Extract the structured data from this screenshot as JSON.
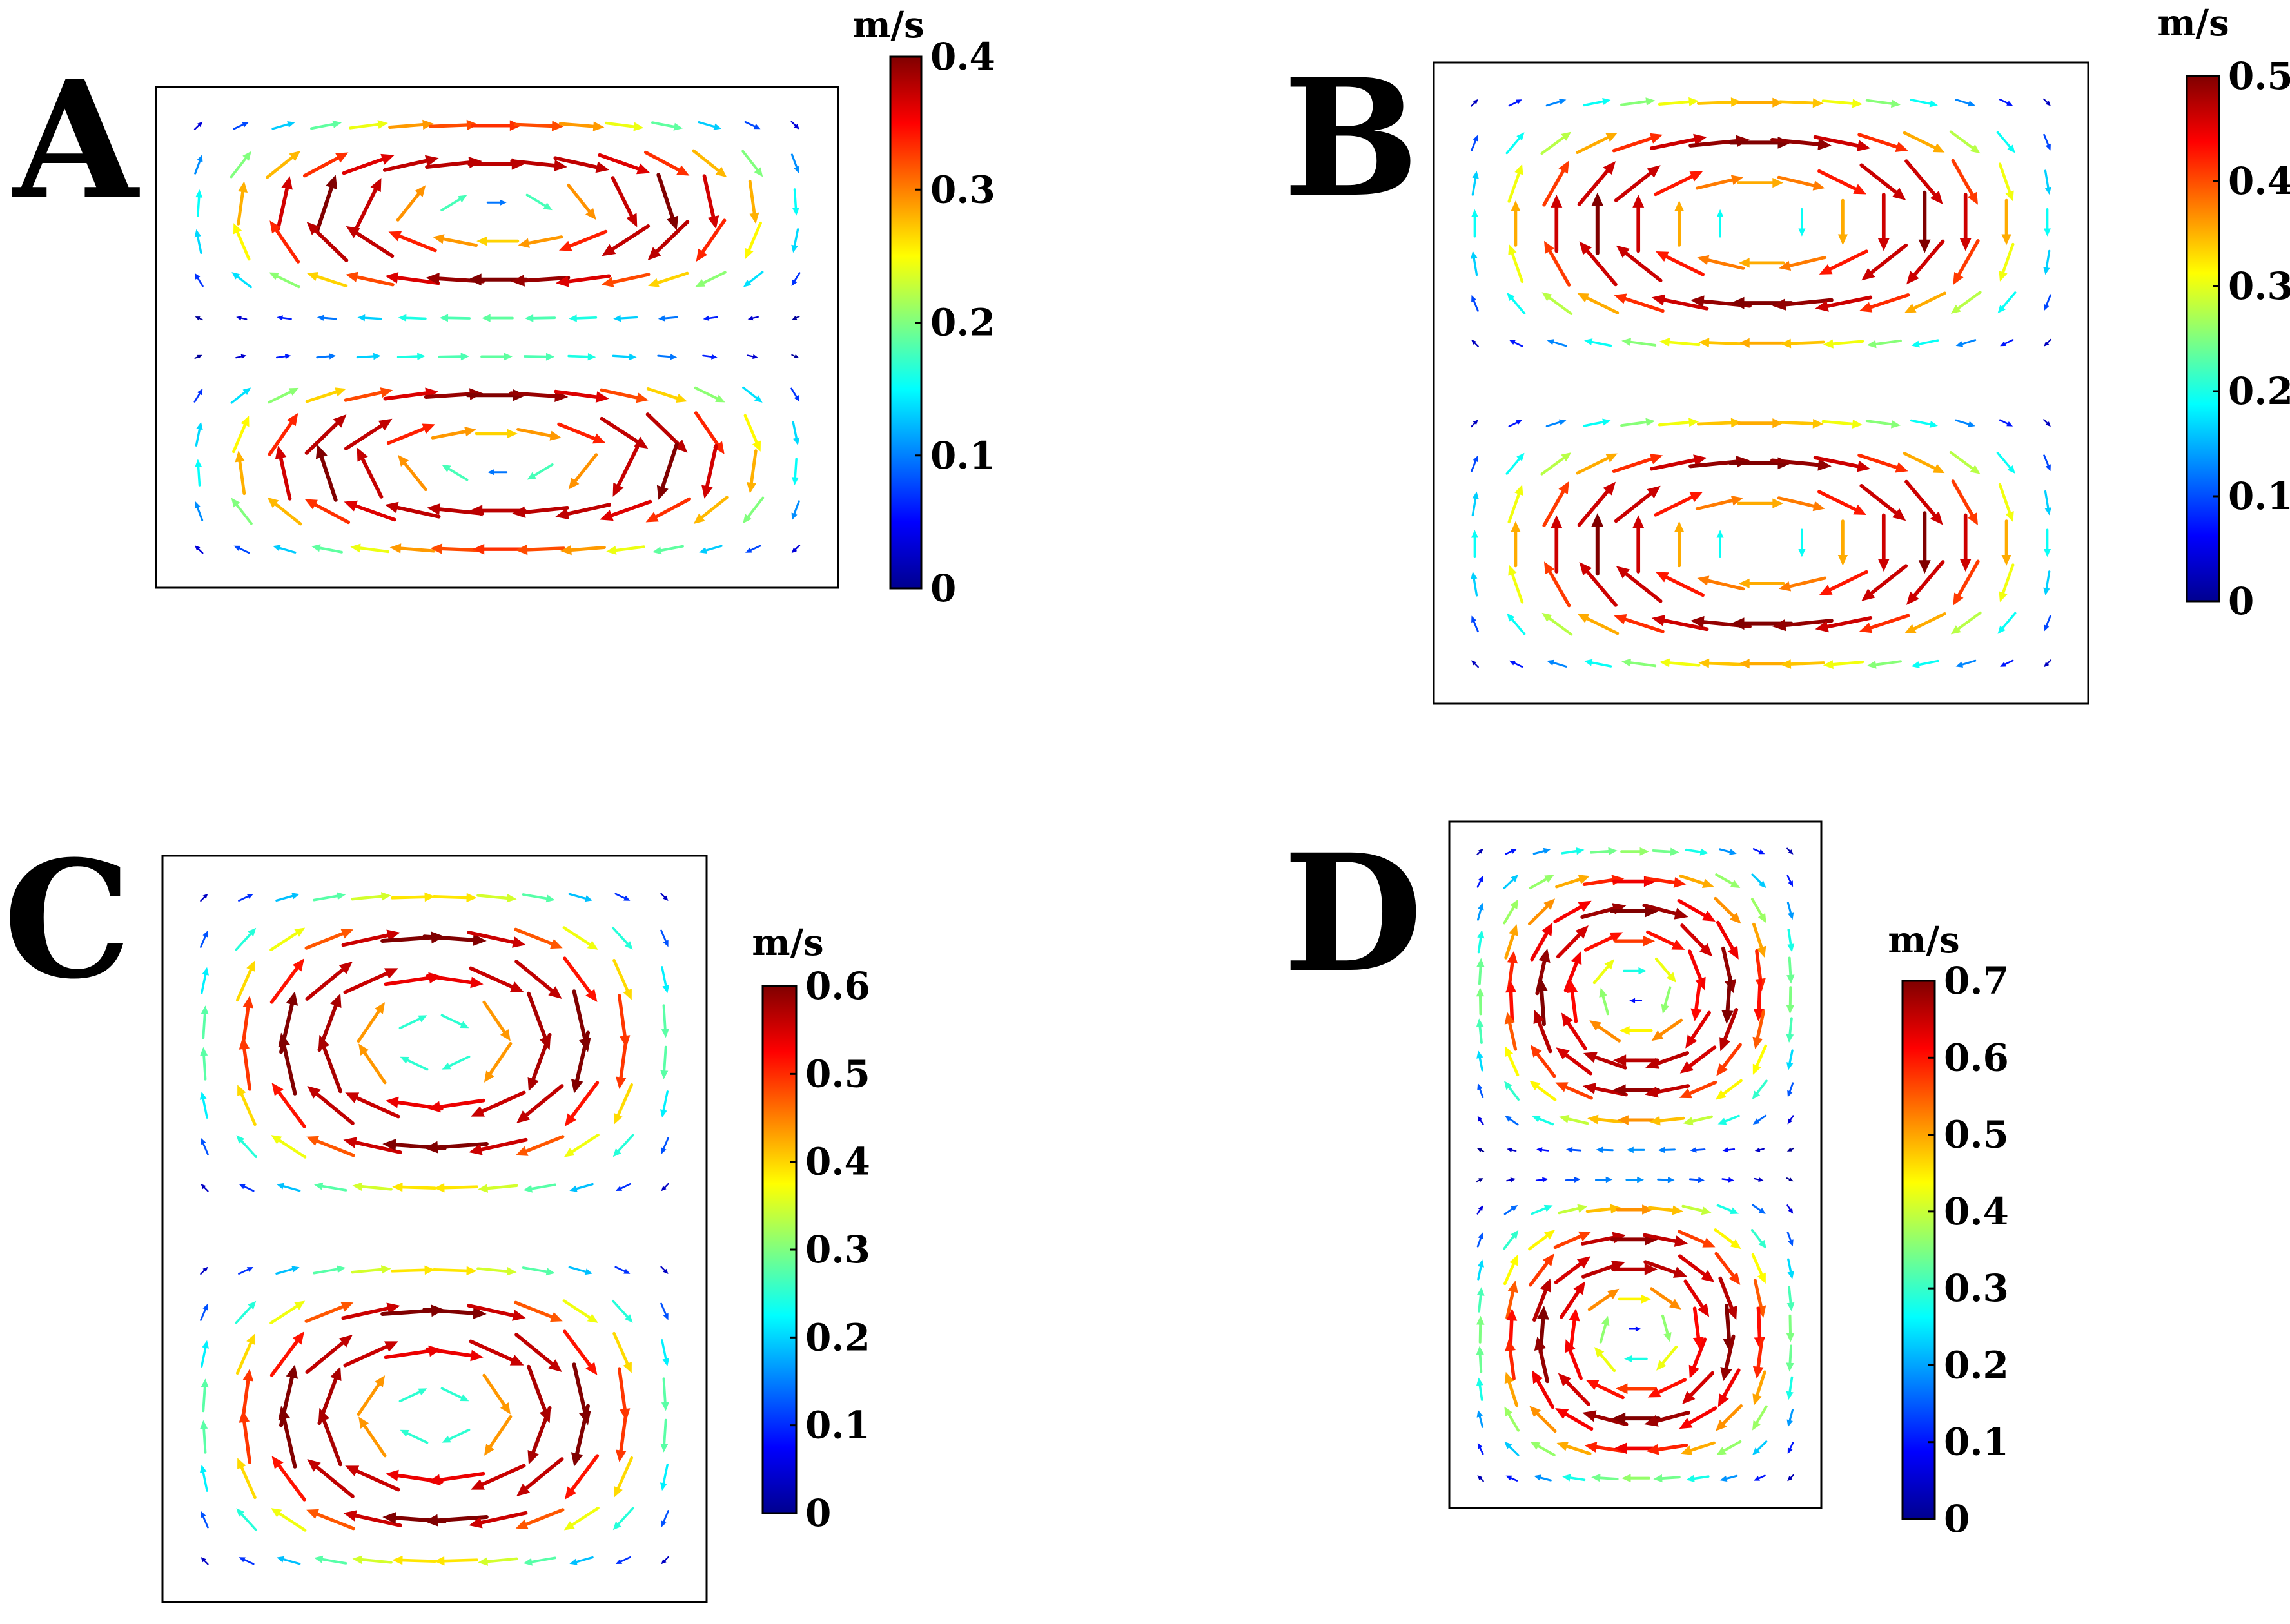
{
  "figure": {
    "panels": [
      {
        "letter": "A",
        "unit": "m/s",
        "ticks": [
          "0",
          "0.1",
          "0.2",
          "0.3",
          "0.4"
        ],
        "max": 0.4,
        "cols": 15,
        "rows": 12
      },
      {
        "letter": "B",
        "unit": "m/s",
        "ticks": [
          "0",
          "0.1",
          "0.2",
          "0.3",
          "0.4",
          "0.5"
        ],
        "max": 0.5,
        "cols": 15,
        "rows": 15
      },
      {
        "letter": "C",
        "unit": "m/s",
        "ticks": [
          "0",
          "0.1",
          "0.2",
          "0.3",
          "0.4",
          "0.5",
          "0.6"
        ],
        "max": 0.6,
        "cols": 12,
        "rows": 17
      },
      {
        "letter": "D",
        "unit": "m/s",
        "ticks": [
          "0",
          "0.1",
          "0.2",
          "0.3",
          "0.4",
          "0.5",
          "0.6",
          "0.7"
        ],
        "max": 0.7,
        "cols": 11,
        "rows": 22
      }
    ],
    "colormap": "jet"
  }
}
